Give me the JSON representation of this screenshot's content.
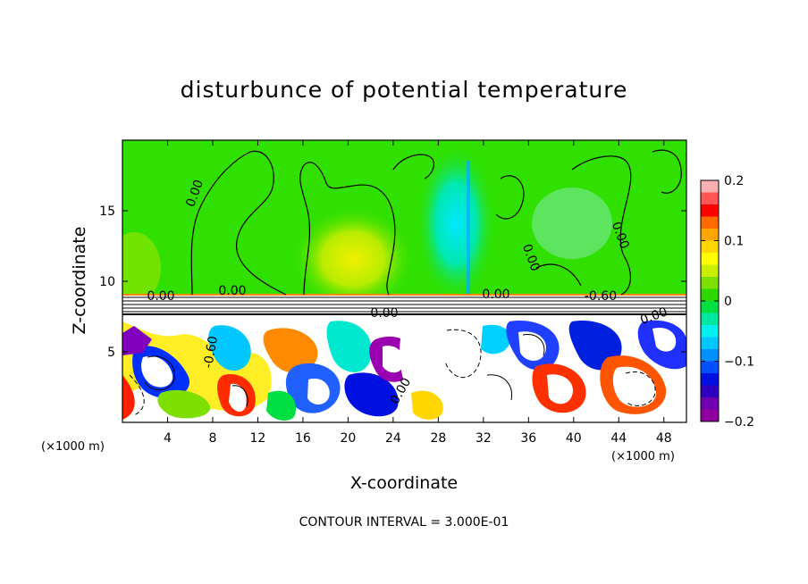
{
  "chart_data": {
    "type": "heatmap",
    "title": "disturbunce of potential temperature",
    "xlabel": "X-coordinate",
    "ylabel": "Z-coordinate",
    "x_unit": "(×1000 m)",
    "z_unit": "(×1000 m)",
    "xlim": [
      0,
      50
    ],
    "ylim": [
      0,
      20
    ],
    "x_ticks": [
      4,
      8,
      12,
      16,
      20,
      24,
      28,
      32,
      36,
      40,
      44,
      48
    ],
    "y_ticks": [
      5,
      10,
      15
    ],
    "colorbar": {
      "range": [
        -0.2,
        0.2
      ],
      "ticks": [
        0.2,
        0.1,
        0,
        -0.1,
        -0.2
      ],
      "tick_labels": [
        "0.2",
        "0.1",
        "0",
        "−0.1",
        "−0.2"
      ],
      "colors": [
        "#fbb1b1",
        "#ff5555",
        "#ff0000",
        "#ff6a00",
        "#ffa500",
        "#ffd600",
        "#ffff00",
        "#c8f000",
        "#7ee000",
        "#2ed800",
        "#00e040",
        "#00e8a0",
        "#00f0f0",
        "#00c8ff",
        "#0090ff",
        "#0050ff",
        "#0010e0",
        "#3000c0",
        "#7000b0",
        "#9000a0"
      ]
    },
    "contour_labels": [
      "0.00",
      "0.00",
      "0.00",
      "-0.60",
      "0.00",
      "0.00",
      "-0.60",
      "0.00",
      "0.00",
      "0.00",
      "0.00"
    ],
    "contour_interval_text": "CONTOUR INTERVAL = 3.000E-01",
    "regions": {
      "upper": "positive green anomaly with yellow maximum near x=18-22, cyan plume near x=28-32",
      "tropopause_band_z": [
        7.5,
        9
      ],
      "lower": "turbulent layer with mixed positive/negative anomalies below z≈7.5"
    }
  }
}
